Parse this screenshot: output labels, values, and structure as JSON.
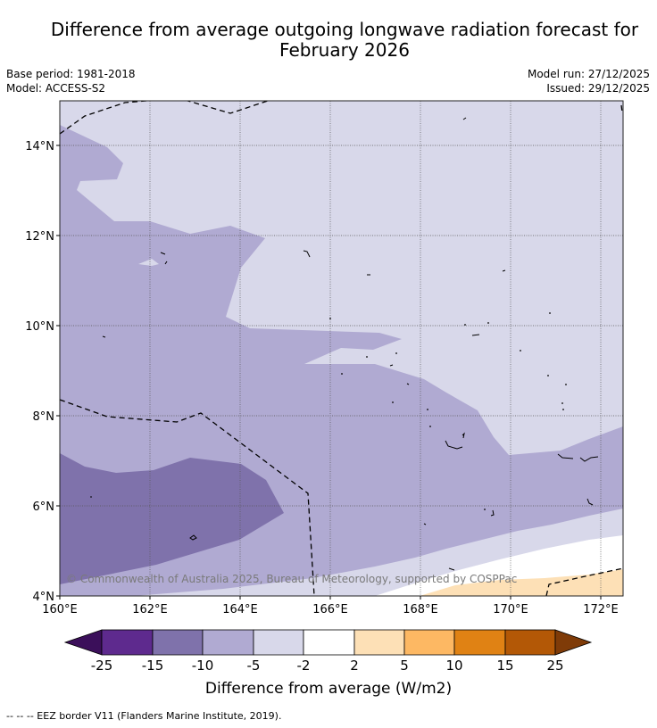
{
  "header": {
    "title_line1": "Difference from average outgoing longwave radiation forecast for",
    "title_line2": "February 2026",
    "base_period": "Base period: 1981-2018",
    "model": "Model: ACCESS-S2",
    "model_run": "Model run: 27/12/2025",
    "issued": "Issued: 29/12/2025"
  },
  "map": {
    "lat_labels": [
      "14°N",
      "12°N",
      "10°N",
      "8°N",
      "6°N",
      "4°N"
    ],
    "lon_labels": [
      "160°E",
      "162°E",
      "164°E",
      "166°E",
      "168°E",
      "170°E",
      "172°E"
    ],
    "copyright": "© Commonwealth of Australia 2025, Bureau of Meteorology, supported by COSPPac"
  },
  "colorbar": {
    "tick_labels": [
      "-25",
      "-15",
      "-10",
      "-5",
      "-2",
      "2",
      "5",
      "10",
      "15",
      "25"
    ],
    "colors": [
      "#3b0f5a",
      "#5e2a8e",
      "#7f72ab",
      "#b0aad2",
      "#d8d8ea",
      "#ffffff",
      "#fde0b6",
      "#fdb863",
      "#e08214",
      "#b35806",
      "#7f3b08"
    ],
    "label": "Difference from average (W/m2)"
  },
  "legend": {
    "eez_note": "--  --  -- EEZ border V11 (Flanders Marine Institute, 2019)."
  }
}
